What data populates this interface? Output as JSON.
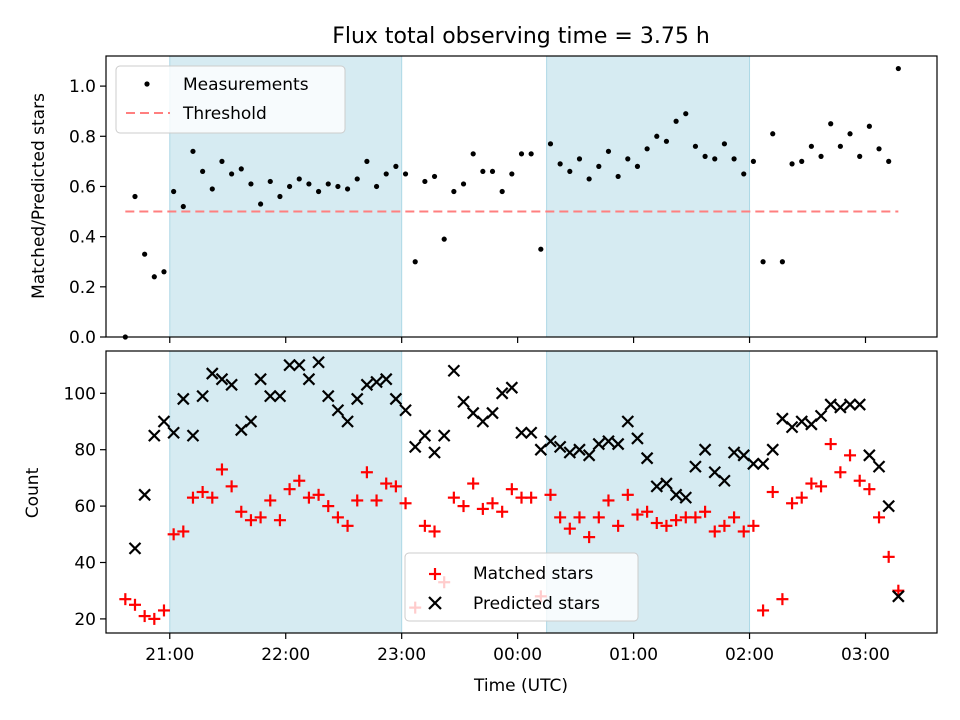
{
  "figure": {
    "title": "Flux total observing time = 3.75 h"
  },
  "chart_data": [
    {
      "type": "scatter",
      "panel": "top",
      "ylabel": "Matched/Predicted stars",
      "ylim": [
        0,
        1.12
      ],
      "yticks": [
        0.0,
        0.2,
        0.4,
        0.6,
        0.8,
        1.0
      ],
      "ytick_labels": [
        "0.0",
        "0.2",
        "0.4",
        "0.6",
        "0.8",
        "1.0"
      ],
      "xlim": [
        "20:27",
        "03:37"
      ],
      "grid": false,
      "legend": {
        "placement": "top-left",
        "entries": [
          {
            "label": "Measurements",
            "marker": "dot",
            "color": "#000000"
          },
          {
            "label": "Threshold",
            "marker": "dashed-line",
            "color": "#ff7f7f"
          }
        ]
      },
      "shaded_intervals": [
        [
          "21:00",
          "23:00"
        ],
        [
          "00:15",
          "02:00"
        ]
      ],
      "threshold": {
        "value": 0.5,
        "x_start": "20:37",
        "x_end": "03:17",
        "color": "#ff7f7f"
      },
      "series": [
        {
          "name": "Measurements",
          "color": "#000000",
          "x": [
            "20:37",
            "20:42",
            "20:47",
            "20:52",
            "20:57",
            "21:02",
            "21:07",
            "21:12",
            "21:17",
            "21:22",
            "21:27",
            "21:32",
            "21:37",
            "21:42",
            "21:47",
            "21:52",
            "21:57",
            "22:02",
            "22:07",
            "22:12",
            "22:17",
            "22:22",
            "22:27",
            "22:32",
            "22:37",
            "22:42",
            "22:47",
            "22:52",
            "22:57",
            "23:02",
            "23:07",
            "23:12",
            "23:17",
            "23:22",
            "23:27",
            "23:32",
            "23:37",
            "23:42",
            "23:47",
            "23:52",
            "23:57",
            "00:02",
            "00:07",
            "00:12",
            "00:17",
            "00:22",
            "00:27",
            "00:32",
            "00:37",
            "00:42",
            "00:47",
            "00:52",
            "00:57",
            "01:02",
            "01:07",
            "01:12",
            "01:17",
            "01:22",
            "01:27",
            "01:32",
            "01:37",
            "01:42",
            "01:47",
            "01:52",
            "01:57",
            "02:02",
            "02:07",
            "02:12",
            "02:17",
            "02:22",
            "02:27",
            "02:32",
            "02:37",
            "02:42",
            "02:47",
            "02:52",
            "02:57",
            "03:02",
            "03:07",
            "03:12",
            "03:17"
          ],
          "y": [
            0.0,
            0.56,
            0.33,
            0.24,
            0.26,
            0.58,
            0.52,
            0.74,
            0.66,
            0.59,
            0.7,
            0.65,
            0.67,
            0.61,
            0.53,
            0.62,
            0.56,
            0.6,
            0.63,
            0.61,
            0.58,
            0.61,
            0.6,
            0.59,
            0.63,
            0.7,
            0.6,
            0.65,
            0.68,
            0.65,
            0.3,
            0.62,
            0.64,
            0.39,
            0.58,
            0.61,
            0.73,
            0.66,
            0.66,
            0.58,
            0.65,
            0.73,
            0.73,
            0.35,
            0.77,
            0.69,
            0.66,
            0.71,
            0.63,
            0.68,
            0.74,
            0.64,
            0.71,
            0.68,
            0.75,
            0.8,
            0.78,
            0.86,
            0.89,
            0.76,
            0.72,
            0.71,
            0.77,
            0.71,
            0.65,
            0.7,
            0.3,
            0.81,
            0.3,
            0.69,
            0.7,
            0.76,
            0.72,
            0.85,
            0.76,
            0.81,
            0.72,
            0.84,
            0.75,
            0.7,
            1.07
          ]
        }
      ]
    },
    {
      "type": "scatter",
      "panel": "bottom",
      "xlabel": "Time (UTC)",
      "ylabel": "Count",
      "ylim": [
        15,
        115
      ],
      "yticks": [
        20,
        40,
        60,
        80,
        100
      ],
      "ytick_labels": [
        "20",
        "40",
        "60",
        "80",
        "100"
      ],
      "xlim": [
        "20:27",
        "03:37"
      ],
      "xticks": [
        "21:00",
        "22:00",
        "23:00",
        "00:00",
        "01:00",
        "02:00",
        "03:00"
      ],
      "grid": false,
      "legend": {
        "placement": "bottom-center",
        "entries": [
          {
            "label": "Matched stars",
            "marker": "plus",
            "color": "#ff0000"
          },
          {
            "label": "Predicted stars",
            "marker": "x",
            "color": "#000000"
          }
        ]
      },
      "shaded_intervals": [
        [
          "21:00",
          "23:00"
        ],
        [
          "00:15",
          "02:00"
        ]
      ],
      "series": [
        {
          "name": "Matched stars",
          "marker": "plus",
          "color": "#ff0000",
          "x": [
            "20:37",
            "20:42",
            "20:47",
            "20:52",
            "20:57",
            "21:02",
            "21:07",
            "21:12",
            "21:17",
            "21:22",
            "21:27",
            "21:32",
            "21:37",
            "21:42",
            "21:47",
            "21:52",
            "21:57",
            "22:02",
            "22:07",
            "22:12",
            "22:17",
            "22:22",
            "22:27",
            "22:32",
            "22:37",
            "22:42",
            "22:47",
            "22:52",
            "22:57",
            "23:02",
            "23:07",
            "23:12",
            "23:17",
            "23:22",
            "23:27",
            "23:32",
            "23:37",
            "23:42",
            "23:47",
            "23:52",
            "23:57",
            "00:02",
            "00:07",
            "00:12",
            "00:17",
            "00:22",
            "00:27",
            "00:32",
            "00:37",
            "00:42",
            "00:47",
            "00:52",
            "00:57",
            "01:02",
            "01:07",
            "01:12",
            "01:17",
            "01:22",
            "01:27",
            "01:32",
            "01:37",
            "01:42",
            "01:47",
            "01:52",
            "01:57",
            "02:02",
            "02:07",
            "02:12",
            "02:17",
            "02:22",
            "02:27",
            "02:32",
            "02:37",
            "02:42",
            "02:47",
            "02:52",
            "02:57",
            "03:02",
            "03:07",
            "03:12",
            "03:17"
          ],
          "y": [
            27,
            25,
            21,
            20,
            23,
            50,
            51,
            63,
            65,
            63,
            73,
            67,
            58,
            55,
            56,
            62,
            55,
            66,
            69,
            63,
            64,
            60,
            56,
            53,
            62,
            72,
            62,
            68,
            67,
            61,
            24,
            53,
            51,
            33,
            63,
            60,
            68,
            59,
            61,
            58,
            66,
            63,
            63,
            28,
            64,
            56,
            52,
            56,
            49,
            56,
            62,
            53,
            64,
            57,
            58,
            54,
            53,
            55,
            56,
            56,
            58,
            51,
            53,
            56,
            51,
            53,
            23,
            65,
            27,
            61,
            63,
            68,
            67,
            82,
            72,
            78,
            69,
            66,
            56,
            42,
            30
          ]
        },
        {
          "name": "Predicted stars",
          "marker": "x",
          "color": "#000000",
          "x": [
            "20:42",
            "20:47",
            "20:52",
            "20:57",
            "21:02",
            "21:07",
            "21:12",
            "21:17",
            "21:22",
            "21:27",
            "21:32",
            "21:37",
            "21:42",
            "21:47",
            "21:52",
            "21:57",
            "22:02",
            "22:07",
            "22:12",
            "22:17",
            "22:22",
            "22:27",
            "22:32",
            "22:37",
            "22:42",
            "22:47",
            "22:52",
            "22:57",
            "23:02",
            "23:07",
            "23:12",
            "23:17",
            "23:22",
            "23:27",
            "23:32",
            "23:37",
            "23:42",
            "23:47",
            "23:52",
            "23:57",
            "00:02",
            "00:07",
            "00:12",
            "00:17",
            "00:22",
            "00:27",
            "00:32",
            "00:37",
            "00:42",
            "00:47",
            "00:52",
            "00:57",
            "01:02",
            "01:07",
            "01:12",
            "01:17",
            "01:22",
            "01:27",
            "01:32",
            "01:37",
            "01:42",
            "01:47",
            "01:52",
            "01:57",
            "02:02",
            "02:07",
            "02:12",
            "02:17",
            "02:22",
            "02:27",
            "02:32",
            "02:37",
            "02:42",
            "02:47",
            "02:52",
            "02:57",
            "03:02",
            "03:07",
            "03:12",
            "03:17"
          ],
          "y": [
            45,
            64,
            85,
            90,
            86,
            98,
            85,
            99,
            107,
            105,
            103,
            87,
            90,
            105,
            99,
            99,
            110,
            110,
            105,
            111,
            99,
            94,
            90,
            98,
            103,
            104,
            105,
            98,
            94,
            81,
            85,
            79,
            85,
            108,
            97,
            93,
            90,
            93,
            100,
            102,
            86,
            86,
            80,
            83,
            81,
            79,
            80,
            78,
            82,
            83,
            82,
            90,
            84,
            77,
            67,
            68,
            64,
            63,
            74,
            80,
            72,
            69,
            79,
            78,
            75,
            75,
            80,
            91,
            88,
            90,
            89,
            92,
            96,
            95,
            96,
            96,
            78,
            74,
            60,
            28
          ]
        }
      ]
    }
  ]
}
